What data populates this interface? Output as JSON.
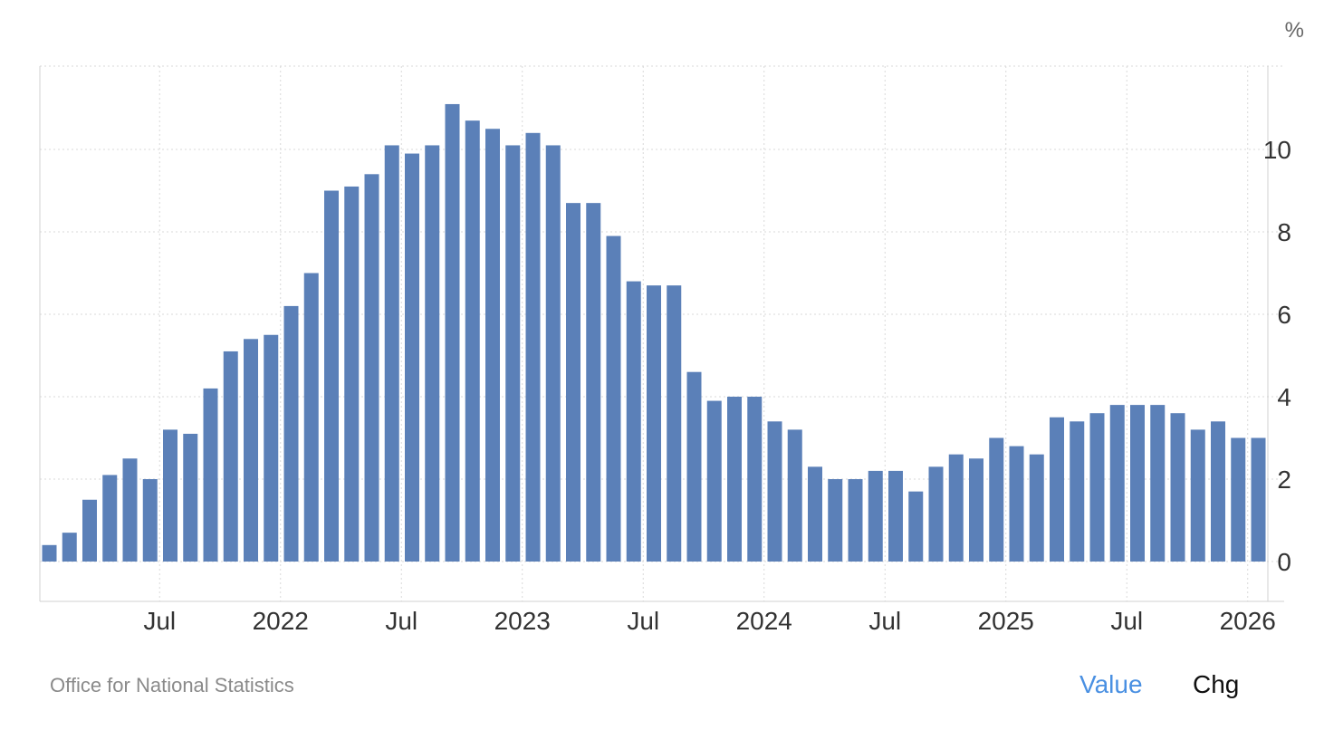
{
  "colors": {
    "bar": "#5b80b8",
    "grid": "#d9d9d9",
    "axis": "#d0d0d0",
    "tick_text": "#333333",
    "active_toggle": "#4a90e2",
    "inactive_toggle": "#111111"
  },
  "unit": "%",
  "source": "Office for National Statistics",
  "toggles": {
    "value": "Value",
    "chg": "Chg"
  },
  "chart_data": {
    "type": "bar",
    "title": "",
    "xlabel": "",
    "ylabel": "",
    "ylim": [
      -1,
      11.8
    ],
    "y_ticks": [
      0,
      2,
      4,
      6,
      8,
      10
    ],
    "grid": true,
    "y_axis_side": "right",
    "x_tick_labels": [
      {
        "index": 5,
        "label": "Jul"
      },
      {
        "index": 11,
        "label": "2022"
      },
      {
        "index": 17,
        "label": "Jul"
      },
      {
        "index": 23,
        "label": "2023"
      },
      {
        "index": 29,
        "label": "Jul"
      },
      {
        "index": 35,
        "label": "2024"
      },
      {
        "index": 41,
        "label": "Jul"
      },
      {
        "index": 47,
        "label": "2025"
      },
      {
        "index": 53,
        "label": "Jul"
      },
      {
        "index": 59,
        "label": "2026"
      }
    ],
    "values": [
      0.4,
      0.7,
      1.5,
      2.1,
      2.5,
      2.0,
      3.2,
      3.1,
      4.2,
      5.1,
      5.4,
      5.5,
      6.2,
      7.0,
      9.0,
      9.1,
      9.4,
      10.1,
      9.9,
      10.1,
      11.1,
      10.7,
      10.5,
      10.1,
      10.4,
      10.1,
      8.7,
      8.7,
      7.9,
      6.8,
      6.7,
      6.7,
      4.6,
      3.9,
      4.0,
      4.0,
      3.4,
      3.2,
      2.3,
      2.0,
      2.0,
      2.2,
      2.2,
      1.7,
      2.3,
      2.6,
      2.5,
      3.0,
      2.8,
      2.6,
      3.5,
      3.4,
      3.6,
      3.8,
      3.8,
      3.8,
      3.6,
      3.2,
      3.4,
      3.0,
      3.0
    ]
  }
}
